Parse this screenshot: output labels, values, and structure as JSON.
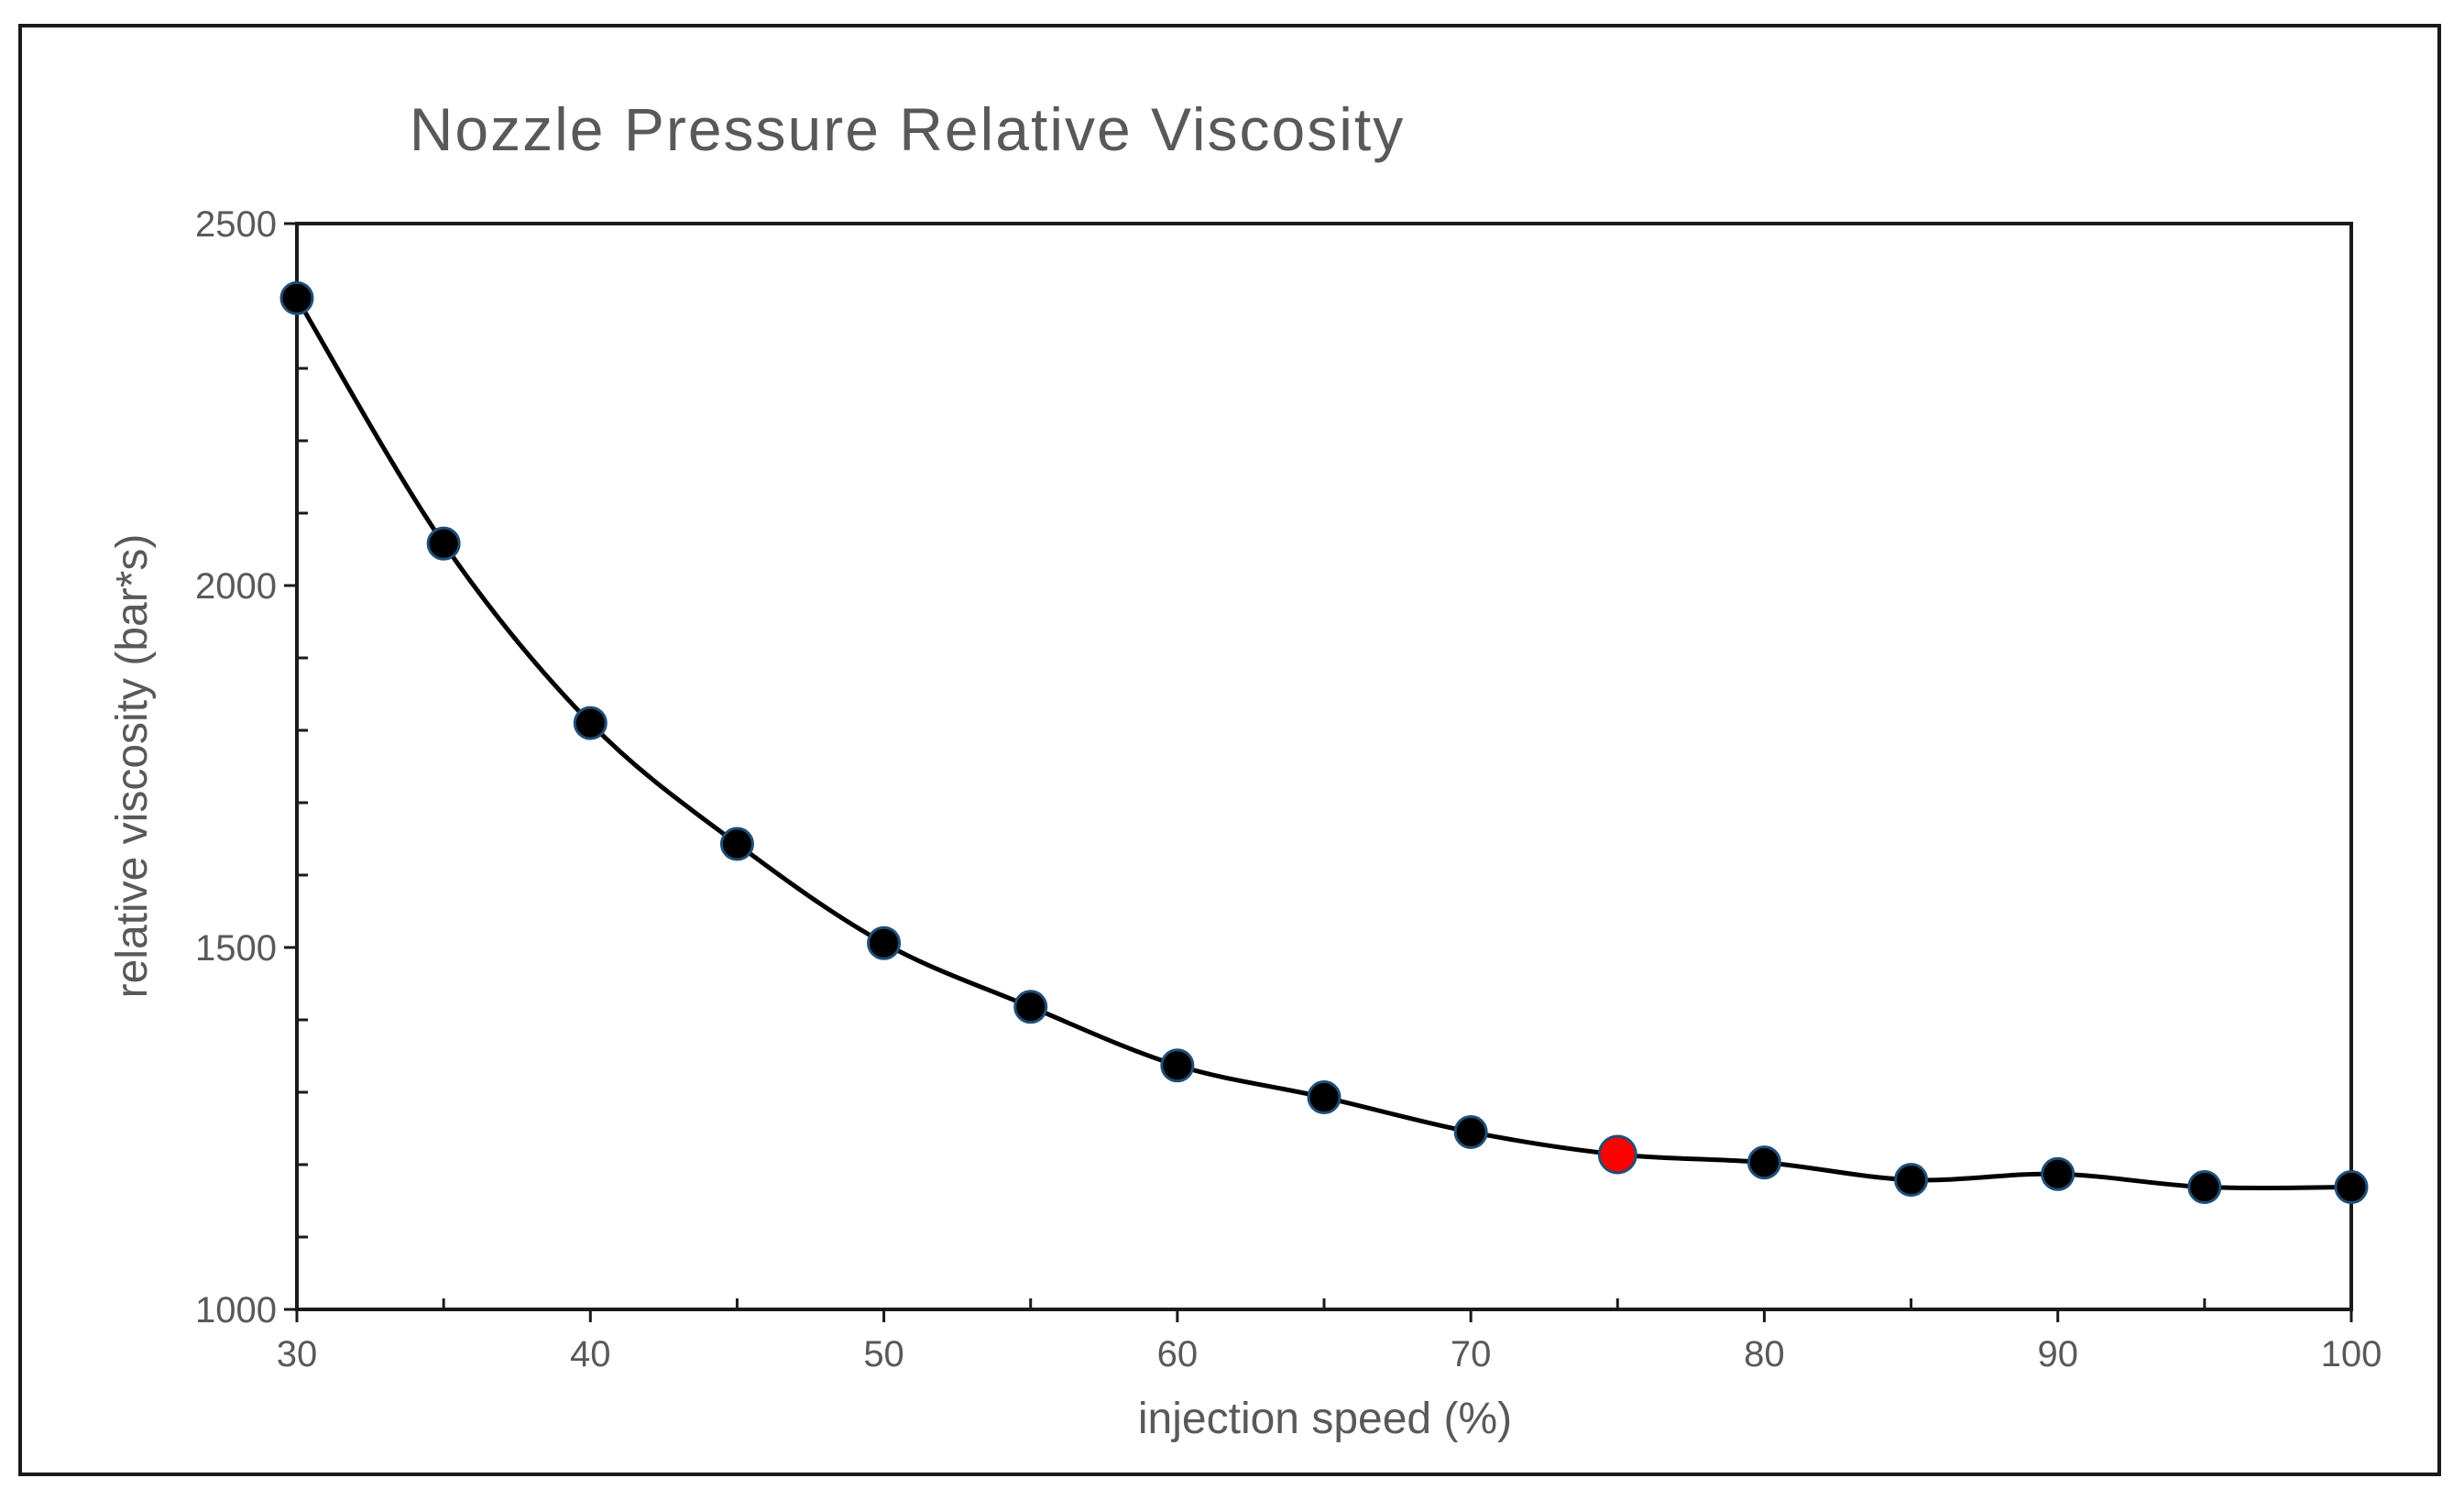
{
  "chart_data": {
    "type": "line",
    "title": "Nozzle Pressure Relative Viscosity",
    "xlabel": "injection speed (%)",
    "ylabel": "relative viscosity (bar*s)",
    "xlim": [
      30,
      100
    ],
    "ylim": [
      1000,
      2500
    ],
    "x_ticks": [
      "30",
      "40",
      "50",
      "60",
      "70",
      "80",
      "90",
      "100"
    ],
    "y_ticks": [
      "1000",
      "1500",
      "2000",
      "2500"
    ],
    "grid": false,
    "legend": "none",
    "series": [
      {
        "name": "relative viscosity",
        "color": "#000000",
        "marker_color": "#000000",
        "marker_edge_color": "#1f4e79",
        "x": [
          30,
          35,
          40,
          45,
          50,
          55,
          60,
          65,
          70,
          75,
          80,
          85,
          90,
          95,
          100
        ],
        "y": [
          2397,
          2058,
          1810,
          1643,
          1506,
          1418,
          1337,
          1293,
          1245,
          1214,
          1203,
          1179,
          1187,
          1169,
          1169
        ]
      }
    ],
    "highlight": {
      "x": 75,
      "y": 1214,
      "color": "#ff0000"
    }
  }
}
